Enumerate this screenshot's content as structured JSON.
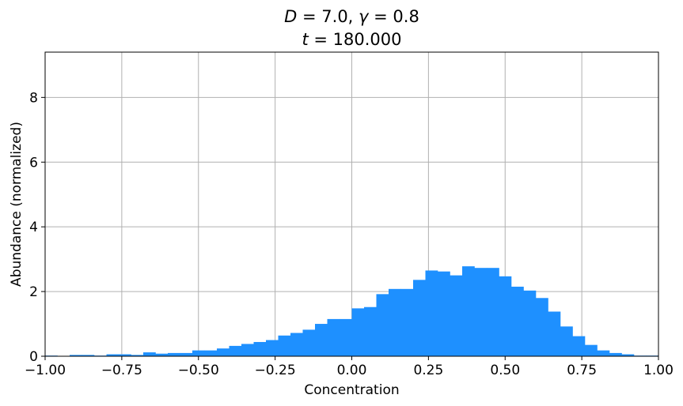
{
  "chart_data": {
    "type": "bar",
    "title_parts": {
      "line1": [
        {
          "text": "D",
          "italic": true
        },
        {
          "text": " = 7.0, ",
          "italic": false
        },
        {
          "text": "γ",
          "italic": true
        },
        {
          "text": " = 0.8",
          "italic": false
        }
      ],
      "line2": [
        {
          "text": "t",
          "italic": true
        },
        {
          "text": " = 180.000",
          "italic": false
        }
      ]
    },
    "xlabel": "Concentration",
    "ylabel": "Abundance (normalized)",
    "xlim": [
      -1.0,
      1.0
    ],
    "ylim": [
      0,
      9.4
    ],
    "xticks": [
      -1.0,
      -0.75,
      -0.5,
      -0.25,
      0.0,
      0.25,
      0.5,
      0.75,
      1.0
    ],
    "xtick_labels": [
      "−1.00",
      "−0.75",
      "−0.50",
      "−0.25",
      "0.00",
      "0.25",
      "0.50",
      "0.75",
      "1.00"
    ],
    "yticks": [
      0,
      2,
      4,
      6,
      8
    ],
    "ytick_labels": [
      "0",
      "2",
      "4",
      "6",
      "8"
    ],
    "grid": true,
    "bar_color": "#1e90ff",
    "bin_width": 0.04,
    "bin_starts": [
      -1.0,
      -0.96,
      -0.92,
      -0.88,
      -0.84,
      -0.8,
      -0.76,
      -0.72,
      -0.68,
      -0.64,
      -0.6,
      -0.56,
      -0.52,
      -0.48,
      -0.44,
      -0.4,
      -0.36,
      -0.32,
      -0.28,
      -0.24,
      -0.2,
      -0.16,
      -0.12,
      -0.08,
      -0.04,
      0.0,
      0.04,
      0.08,
      0.12,
      0.16,
      0.2,
      0.24,
      0.28,
      0.32,
      0.36,
      0.4,
      0.44,
      0.48,
      0.52,
      0.56,
      0.6,
      0.64,
      0.68,
      0.72,
      0.76,
      0.8,
      0.84,
      0.88,
      0.92,
      0.96
    ],
    "values": [
      0.02,
      0.0,
      0.04,
      0.04,
      0.02,
      0.06,
      0.06,
      0.04,
      0.12,
      0.08,
      0.1,
      0.1,
      0.18,
      0.18,
      0.24,
      0.32,
      0.38,
      0.44,
      0.5,
      0.64,
      0.72,
      0.82,
      1.0,
      1.15,
      1.15,
      1.48,
      1.52,
      1.92,
      2.08,
      2.08,
      2.36,
      2.65,
      2.62,
      2.5,
      2.78,
      2.73,
      2.73,
      2.47,
      2.15,
      2.03,
      1.8,
      1.38,
      0.92,
      0.62,
      0.35,
      0.18,
      0.1,
      0.06,
      0.02,
      0.02
    ]
  }
}
